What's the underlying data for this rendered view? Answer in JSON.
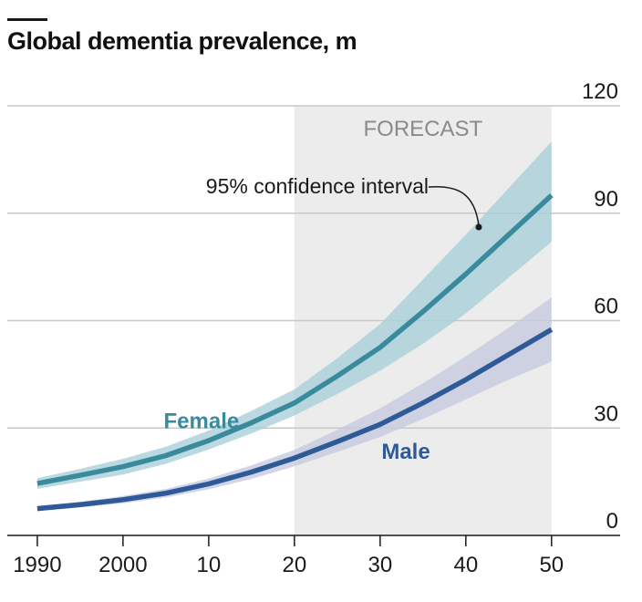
{
  "chart_data": {
    "type": "line",
    "title": "Global dementia prevalence, m",
    "x": [
      1990,
      1995,
      2000,
      2005,
      2010,
      2015,
      2020,
      2025,
      2030,
      2035,
      2040,
      2045,
      2050
    ],
    "x_tick_labels": [
      {
        "year": 1990,
        "label": "1990"
      },
      {
        "year": 2000,
        "label": "2000"
      },
      {
        "year": 2010,
        "label": "10"
      },
      {
        "year": 2020,
        "label": "20"
      },
      {
        "year": 2030,
        "label": "30"
      },
      {
        "year": 2040,
        "label": "40"
      },
      {
        "year": 2050,
        "label": "50"
      }
    ],
    "y_ticks": [
      0,
      30,
      60,
      90,
      120
    ],
    "ylim": [
      0,
      120
    ],
    "xlim": [
      1986.5,
      2058
    ],
    "y_axis_side": "right",
    "grid": true,
    "forecast_region": {
      "from": 2020,
      "to": 2050,
      "label": "FORECAST",
      "color": "#ececec"
    },
    "series": [
      {
        "name": "Female",
        "color": "#3a8a9e",
        "band_color": "#a9cfda",
        "values": [
          14.5,
          16.8,
          19.2,
          22.3,
          26.5,
          31.5,
          37,
          44.5,
          52.5,
          62.5,
          73,
          84,
          95
        ],
        "lower": [
          13,
          15,
          17,
          20,
          24,
          28.5,
          33.5,
          39.5,
          46,
          53.5,
          62,
          72,
          82
        ],
        "upper": [
          16,
          18.6,
          21.4,
          24.8,
          29.3,
          34.8,
          40.8,
          49.5,
          59,
          71.5,
          84,
          97,
          110
        ]
      },
      {
        "name": "Male",
        "color": "#2e5a97",
        "band_color": "#c5cadf",
        "values": [
          7.5,
          8.6,
          10,
          11.8,
          14.4,
          17.7,
          21.6,
          26.2,
          31,
          37,
          43.5,
          50.5,
          57.5
        ],
        "lower": [
          6.8,
          7.8,
          9,
          10.6,
          12.9,
          15.8,
          19.3,
          23.3,
          27.5,
          32.5,
          38,
          43.5,
          48.5
        ],
        "upper": [
          8.2,
          9.4,
          11,
          13,
          15.9,
          19.6,
          23.9,
          29.5,
          35.5,
          42.5,
          50,
          58,
          66.5
        ]
      }
    ],
    "annotations": [
      {
        "text": "95% confidence interval",
        "points_to": "Female confidence band"
      }
    ]
  }
}
